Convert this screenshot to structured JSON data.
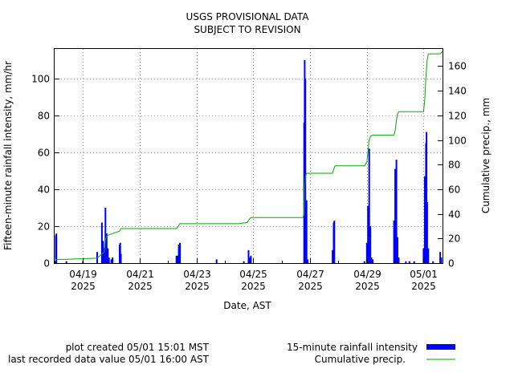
{
  "chart_data": {
    "type": "bar",
    "title_lines": [
      "USGS PROVISIONAL DATA",
      "SUBJECT TO REVISION"
    ],
    "xlabel": "Date, AST",
    "ylabel_left": "Fifteen-minute rainfall intensity, mm/hr",
    "ylabel_right": "Cumulative precip., mm",
    "x_start": "2025-04-18",
    "x_end": "2025-05-01T16:00",
    "x_ticks": [
      {
        "date": "2025-04-19",
        "line1": "04/19",
        "line2": "2025"
      },
      {
        "date": "2025-04-21",
        "line1": "04/21",
        "line2": "2025"
      },
      {
        "date": "2025-04-23",
        "line1": "04/23",
        "line2": "2025"
      },
      {
        "date": "2025-04-25",
        "line1": "04/25",
        "line2": "2025"
      },
      {
        "date": "2025-04-27",
        "line1": "04/27",
        "line2": "2025"
      },
      {
        "date": "2025-04-29",
        "line1": "04/29",
        "line2": "2025"
      },
      {
        "date": "2025-05-01",
        "line1": "05/01",
        "line2": "2025"
      }
    ],
    "ylim_left": [
      0,
      116
    ],
    "yticks_left": [
      0,
      20,
      40,
      60,
      80,
      100
    ],
    "ylim_right": [
      0,
      174
    ],
    "yticks_right": [
      0,
      20,
      40,
      60,
      80,
      100,
      120,
      140,
      160
    ],
    "grid": true,
    "series": [
      {
        "name": "15-minute rainfall intensity",
        "kind": "bar",
        "color": "#0000ff",
        "axis": "left",
        "points": [
          [
            "2025-04-18T01:00",
            15
          ],
          [
            "2025-04-18T01:30",
            16
          ],
          [
            "2025-04-18T10:00",
            1
          ],
          [
            "2025-04-19T00:00",
            1
          ],
          [
            "2025-04-19T12:00",
            6
          ],
          [
            "2025-04-19T16:00",
            22
          ],
          [
            "2025-04-19T17:00",
            12
          ],
          [
            "2025-04-19T18:00",
            8
          ],
          [
            "2025-04-19T19:00",
            30
          ],
          [
            "2025-04-19T20:00",
            16
          ],
          [
            "2025-04-19T21:00",
            8
          ],
          [
            "2025-04-19T22:00",
            3
          ],
          [
            "2025-04-20T00:00",
            2
          ],
          [
            "2025-04-20T01:00",
            3
          ],
          [
            "2025-04-20T07:00",
            10
          ],
          [
            "2025-04-20T07:30",
            11
          ],
          [
            "2025-04-20T08:00",
            5
          ],
          [
            "2025-04-22T07:00",
            4
          ],
          [
            "2025-04-22T08:00",
            4
          ],
          [
            "2025-04-22T09:00",
            10
          ],
          [
            "2025-04-22T10:00",
            11
          ],
          [
            "2025-04-23T17:00",
            2
          ],
          [
            "2025-04-24T16:00",
            1
          ],
          [
            "2025-04-24T20:00",
            7
          ],
          [
            "2025-04-24T21:00",
            3
          ],
          [
            "2025-04-24T22:00",
            4
          ],
          [
            "2025-04-26T19:00",
            76
          ],
          [
            "2025-04-26T19:30",
            110
          ],
          [
            "2025-04-26T20:00",
            100
          ],
          [
            "2025-04-26T21:00",
            34
          ],
          [
            "2025-04-26T22:00",
            2
          ],
          [
            "2025-04-27T19:00",
            7
          ],
          [
            "2025-04-27T20:00",
            22
          ],
          [
            "2025-04-27T20:30",
            23
          ],
          [
            "2025-04-28T22:00",
            1
          ],
          [
            "2025-04-29T00:00",
            11
          ],
          [
            "2025-04-29T01:00",
            31
          ],
          [
            "2025-04-29T02:00",
            62
          ],
          [
            "2025-04-29T03:00",
            20
          ],
          [
            "2025-04-29T04:00",
            3
          ],
          [
            "2025-04-29T05:00",
            2
          ],
          [
            "2025-04-29T23:00",
            23
          ],
          [
            "2025-04-30T00:00",
            51
          ],
          [
            "2025-04-30T01:00",
            56
          ],
          [
            "2025-04-30T02:00",
            14
          ],
          [
            "2025-04-30T03:00",
            3
          ],
          [
            "2025-04-30T09:00",
            1
          ],
          [
            "2025-04-30T12:00",
            1
          ],
          [
            "2025-04-30T16:00",
            1
          ],
          [
            "2025-05-01T00:00",
            8
          ],
          [
            "2025-05-01T01:00",
            47
          ],
          [
            "2025-05-01T02:00",
            65
          ],
          [
            "2025-05-01T02:30",
            71
          ],
          [
            "2025-05-01T03:00",
            33
          ],
          [
            "2025-05-01T04:00",
            8
          ],
          [
            "2025-05-01T08:00",
            1
          ],
          [
            "2025-05-01T14:00",
            6
          ],
          [
            "2025-05-01T15:00",
            3
          ]
        ]
      },
      {
        "name": "Cumulative precip.",
        "kind": "step",
        "color": "#00aa00",
        "axis": "right",
        "points": [
          [
            "2025-04-18",
            0
          ],
          [
            "2025-04-18T01:00",
            3
          ],
          [
            "2025-04-18T08:00",
            3
          ],
          [
            "2025-04-19T12:00",
            4
          ],
          [
            "2025-04-19T18:00",
            9
          ],
          [
            "2025-04-19T19:00",
            19
          ],
          [
            "2025-04-19T20:00",
            22
          ],
          [
            "2025-04-19T22:00",
            23
          ],
          [
            "2025-04-20T01:00",
            24
          ],
          [
            "2025-04-20T07:00",
            26
          ],
          [
            "2025-04-20T08:00",
            28
          ],
          [
            "2025-04-22T07:00",
            28
          ],
          [
            "2025-04-22T08:00",
            29
          ],
          [
            "2025-04-22T10:00",
            32
          ],
          [
            "2025-04-24T12:00",
            32
          ],
          [
            "2025-04-24T19:00",
            33
          ],
          [
            "2025-04-24T20:00",
            35
          ],
          [
            "2025-04-24T22:00",
            37
          ],
          [
            "2025-04-26T18:00",
            37
          ],
          [
            "2025-04-26T19:00",
            40
          ],
          [
            "2025-04-26T19:30",
            60
          ],
          [
            "2025-04-26T20:00",
            70
          ],
          [
            "2025-04-26T21:00",
            73
          ],
          [
            "2025-04-27T19:00",
            73
          ],
          [
            "2025-04-27T20:00",
            76
          ],
          [
            "2025-04-27T21:00",
            79
          ],
          [
            "2025-04-28T22:00",
            79
          ],
          [
            "2025-04-29T00:00",
            82
          ],
          [
            "2025-04-29T01:00",
            91
          ],
          [
            "2025-04-29T02:00",
            100
          ],
          [
            "2025-04-29T03:00",
            103
          ],
          [
            "2025-04-29T05:00",
            104
          ],
          [
            "2025-04-29T23:00",
            104
          ],
          [
            "2025-04-30T00:00",
            108
          ],
          [
            "2025-04-30T01:00",
            116
          ],
          [
            "2025-04-30T02:00",
            121
          ],
          [
            "2025-04-30T03:00",
            123
          ],
          [
            "2025-05-01T00:00",
            123
          ],
          [
            "2025-05-01T01:00",
            133
          ],
          [
            "2025-05-01T02:00",
            152
          ],
          [
            "2025-05-01T03:00",
            165
          ],
          [
            "2025-05-01T04:00",
            170
          ],
          [
            "2025-05-01T14:00",
            170
          ],
          [
            "2025-05-01T16:00",
            172
          ]
        ]
      }
    ],
    "legend_location": "bottom-right"
  },
  "footer": {
    "line1": "plot created 05/01 15:01 MST",
    "line2": "last recorded data value 05/01 16:00 AST"
  }
}
